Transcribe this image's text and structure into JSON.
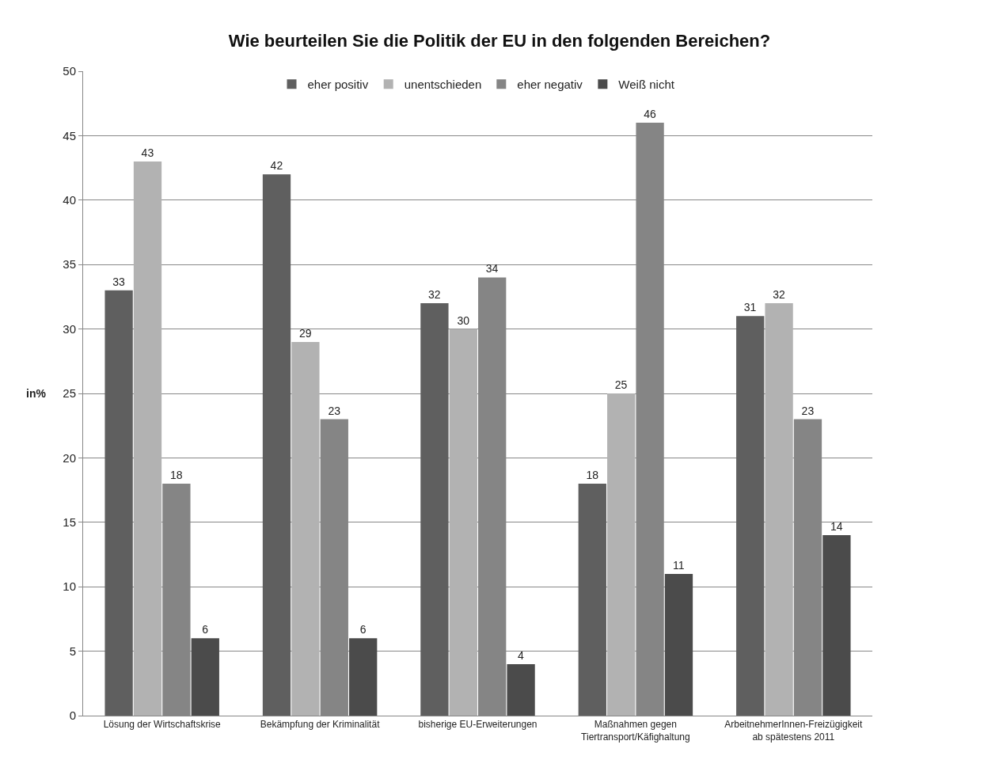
{
  "chart_data": {
    "type": "bar",
    "title": "Wie beurteilen Sie die Politik der EU in den folgenden Bereichen?",
    "ylabel": "in%",
    "categories": [
      "Lösung der Wirtschaftskrise",
      "Bekämpfung der Kriminalität",
      "bisherige EU-Erweiterungen",
      "Maßnahmen gegen\nTiertransport/Käfighaltung",
      "ArbeitnehmerInnen-Freizügigkeit\nab spätestens 2011"
    ],
    "series": [
      {
        "name": "eher positiv",
        "color": "#5f5f5f",
        "values": [
          33,
          42,
          32,
          18,
          31
        ]
      },
      {
        "name": "unentschieden",
        "color": "#b2b2b2",
        "values": [
          43,
          29,
          30,
          25,
          32
        ]
      },
      {
        "name": "eher negativ",
        "color": "#858585",
        "values": [
          18,
          23,
          34,
          46,
          23
        ]
      },
      {
        "name": "Weiß nicht",
        "color": "#4b4b4b",
        "values": [
          6,
          6,
          4,
          11,
          14
        ]
      }
    ],
    "ylim": [
      0,
      50
    ],
    "yticks": [
      0,
      5,
      10,
      15,
      20,
      25,
      30,
      35,
      40,
      45,
      50
    ],
    "grid": "y",
    "legend": "top",
    "data_labels": true
  }
}
